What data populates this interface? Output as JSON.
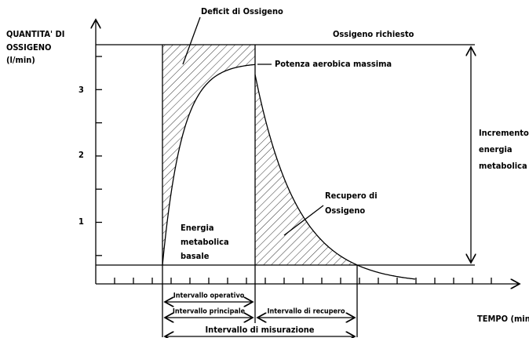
{
  "axis": {
    "y_label": [
      "QUANTITA' DI",
      "OSSIGENO",
      "(l/min)"
    ],
    "yticks": [
      "1",
      "2",
      "3"
    ],
    "x_label": "TEMPO (min)"
  },
  "annotations": {
    "deficit": "Deficit di Ossigeno",
    "required": "Ossigeno richiesto",
    "max_power": "Potenza aerobica massima",
    "recovery": [
      "Recupero di",
      "Ossigeno"
    ],
    "basal": [
      "Energia",
      "metabolica",
      "basale"
    ],
    "increment": [
      "Incremento d",
      "energia",
      "metabolica"
    ]
  },
  "intervals": {
    "operative": "Intervallo operativo",
    "main": "Intervallo principale",
    "recovery": "Intervallo di recupero",
    "measurement": "Intervallo di misurazione"
  }
}
